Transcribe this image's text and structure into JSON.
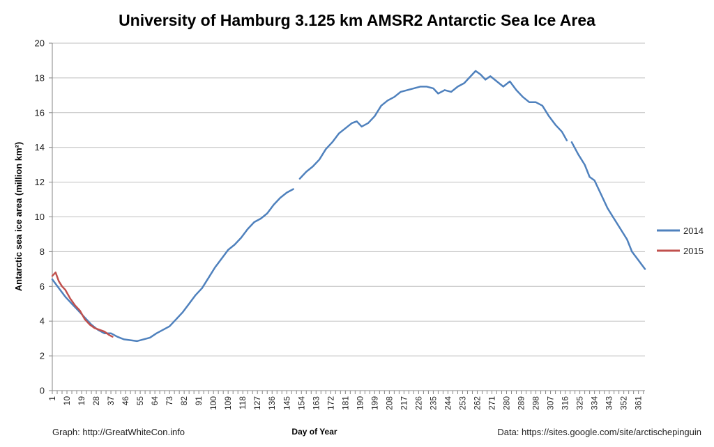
{
  "chart_data": {
    "type": "line",
    "title": "University of Hamburg 3.125 km AMSR2 Antarctic Sea Ice Area",
    "xlabel": "Day of Year",
    "ylabel": "Antarctic sea ice area (million km²)",
    "xlim": [
      1,
      365
    ],
    "ylim": [
      0,
      20
    ],
    "y_ticks": [
      0,
      2,
      4,
      6,
      8,
      10,
      12,
      14,
      16,
      18,
      20
    ],
    "x_tick_labels": [
      1,
      10,
      19,
      28,
      37,
      46,
      55,
      64,
      73,
      82,
      91,
      100,
      109,
      118,
      127,
      136,
      145,
      154,
      163,
      172,
      181,
      190,
      199,
      208,
      217,
      226,
      235,
      244,
      253,
      262,
      271,
      280,
      289,
      298,
      307,
      316,
      325,
      334,
      343,
      352,
      361
    ],
    "grid": "horizontal",
    "legend_position": "right",
    "series": [
      {
        "name": "2014",
        "color": "#4f81bd",
        "segments": [
          [
            [
              1,
              6.4
            ],
            [
              5,
              5.9
            ],
            [
              9,
              5.4
            ],
            [
              13,
              5.0
            ],
            [
              17,
              4.6
            ],
            [
              21,
              4.2
            ],
            [
              25,
              3.8
            ],
            [
              29,
              3.5
            ],
            [
              33,
              3.3
            ],
            [
              37,
              3.3
            ],
            [
              41,
              3.1
            ],
            [
              45,
              2.95
            ],
            [
              49,
              2.9
            ],
            [
              53,
              2.85
            ],
            [
              57,
              2.95
            ],
            [
              61,
              3.05
            ],
            [
              65,
              3.3
            ],
            [
              69,
              3.5
            ],
            [
              73,
              3.7
            ],
            [
              77,
              4.1
            ],
            [
              81,
              4.5
            ],
            [
              85,
              5.0
            ],
            [
              89,
              5.5
            ],
            [
              93,
              5.9
            ],
            [
              97,
              6.5
            ],
            [
              101,
              7.1
            ],
            [
              105,
              7.6
            ],
            [
              109,
              8.1
            ],
            [
              113,
              8.4
            ],
            [
              117,
              8.8
            ],
            [
              121,
              9.3
            ],
            [
              125,
              9.7
            ],
            [
              129,
              9.9
            ],
            [
              133,
              10.2
            ],
            [
              137,
              10.7
            ],
            [
              141,
              11.1
            ],
            [
              145,
              11.4
            ],
            [
              149,
              11.6
            ]
          ],
          [
            [
              153,
              12.2
            ],
            [
              157,
              12.6
            ],
            [
              161,
              12.9
            ],
            [
              165,
              13.3
            ],
            [
              169,
              13.9
            ],
            [
              173,
              14.3
            ],
            [
              177,
              14.8
            ],
            [
              181,
              15.1
            ],
            [
              185,
              15.4
            ],
            [
              188,
              15.5
            ],
            [
              191,
              15.2
            ],
            [
              195,
              15.4
            ],
            [
              199,
              15.8
            ],
            [
              203,
              16.4
            ],
            [
              207,
              16.7
            ],
            [
              211,
              16.9
            ],
            [
              215,
              17.2
            ],
            [
              219,
              17.3
            ],
            [
              223,
              17.4
            ],
            [
              227,
              17.5
            ],
            [
              231,
              17.5
            ],
            [
              235,
              17.4
            ],
            [
              238,
              17.1
            ],
            [
              242,
              17.3
            ],
            [
              246,
              17.2
            ],
            [
              250,
              17.5
            ],
            [
              254,
              17.7
            ],
            [
              258,
              18.1
            ],
            [
              261,
              18.4
            ],
            [
              264,
              18.2
            ],
            [
              267,
              17.9
            ],
            [
              270,
              18.1
            ],
            [
              274,
              17.8
            ],
            [
              278,
              17.5
            ],
            [
              282,
              17.8
            ],
            [
              286,
              17.3
            ],
            [
              290,
              16.9
            ],
            [
              294,
              16.6
            ],
            [
              298,
              16.6
            ],
            [
              302,
              16.4
            ],
            [
              306,
              15.8
            ],
            [
              310,
              15.3
            ],
            [
              314,
              14.9
            ],
            [
              317,
              14.4
            ]
          ],
          [
            [
              320,
              14.3
            ],
            [
              324,
              13.6
            ],
            [
              328,
              13.0
            ],
            [
              331,
              12.3
            ],
            [
              334,
              12.1
            ],
            [
              338,
              11.3
            ],
            [
              342,
              10.5
            ],
            [
              346,
              9.9
            ],
            [
              350,
              9.3
            ],
            [
              354,
              8.7
            ],
            [
              357,
              8.0
            ],
            [
              361,
              7.5
            ],
            [
              365,
              7.0
            ]
          ]
        ]
      },
      {
        "name": "2015",
        "color": "#c0504d",
        "segments": [
          [
            [
              1,
              6.6
            ],
            [
              3,
              6.8
            ],
            [
              5,
              6.3
            ],
            [
              7,
              6.0
            ],
            [
              9,
              5.8
            ],
            [
              12,
              5.3
            ],
            [
              15,
              4.9
            ],
            [
              18,
              4.6
            ],
            [
              21,
              4.1
            ],
            [
              24,
              3.8
            ],
            [
              27,
              3.6
            ],
            [
              30,
              3.5
            ],
            [
              33,
              3.4
            ],
            [
              36,
              3.2
            ],
            [
              38,
              3.1
            ]
          ]
        ]
      }
    ]
  },
  "footer": {
    "left": "Graph: http://GreatWhiteCon.info",
    "right": "Data: https://sites.google.com/site/arctischepinguin"
  },
  "colors": {
    "grid": "#bfbfbf",
    "axis": "#868686"
  }
}
